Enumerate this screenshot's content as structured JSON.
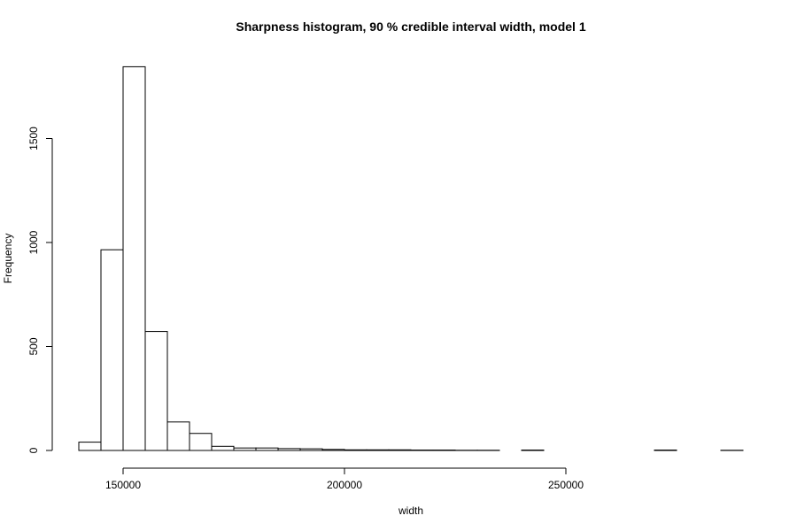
{
  "chart_data": {
    "type": "bar",
    "title": "Sharpness histogram, 90 % credible interval width, model 1",
    "xlabel": "width",
    "ylabel": "Frequency",
    "bin_width": 5000,
    "bins": [
      {
        "start": 140000,
        "end": 145000,
        "count": 40
      },
      {
        "start": 145000,
        "end": 150000,
        "count": 965
      },
      {
        "start": 150000,
        "end": 155000,
        "count": 1845
      },
      {
        "start": 155000,
        "end": 160000,
        "count": 572
      },
      {
        "start": 160000,
        "end": 165000,
        "count": 137
      },
      {
        "start": 165000,
        "end": 170000,
        "count": 82
      },
      {
        "start": 170000,
        "end": 175000,
        "count": 20
      },
      {
        "start": 175000,
        "end": 180000,
        "count": 12
      },
      {
        "start": 180000,
        "end": 185000,
        "count": 12
      },
      {
        "start": 185000,
        "end": 190000,
        "count": 9
      },
      {
        "start": 190000,
        "end": 195000,
        "count": 8
      },
      {
        "start": 195000,
        "end": 200000,
        "count": 5
      },
      {
        "start": 200000,
        "end": 205000,
        "count": 3
      },
      {
        "start": 205000,
        "end": 210000,
        "count": 3
      },
      {
        "start": 210000,
        "end": 215000,
        "count": 3
      },
      {
        "start": 215000,
        "end": 220000,
        "count": 2
      },
      {
        "start": 220000,
        "end": 225000,
        "count": 2
      },
      {
        "start": 225000,
        "end": 230000,
        "count": 1
      },
      {
        "start": 230000,
        "end": 235000,
        "count": 1
      },
      {
        "start": 235000,
        "end": 240000,
        "count": 0
      },
      {
        "start": 240000,
        "end": 245000,
        "count": 2
      },
      {
        "start": 245000,
        "end": 250000,
        "count": 0
      },
      {
        "start": 250000,
        "end": 255000,
        "count": 0
      },
      {
        "start": 255000,
        "end": 260000,
        "count": 0
      },
      {
        "start": 260000,
        "end": 265000,
        "count": 0
      },
      {
        "start": 265000,
        "end": 270000,
        "count": 0
      },
      {
        "start": 270000,
        "end": 275000,
        "count": 2
      },
      {
        "start": 275000,
        "end": 280000,
        "count": 0
      },
      {
        "start": 280000,
        "end": 285000,
        "count": 0
      },
      {
        "start": 285000,
        "end": 290000,
        "count": 1
      }
    ],
    "x_ticks": [
      {
        "value": 150000,
        "label": "150000"
      },
      {
        "value": 200000,
        "label": "200000"
      },
      {
        "value": 250000,
        "label": "250000"
      }
    ],
    "y_ticks": [
      {
        "value": 0,
        "label": "0"
      },
      {
        "value": 500,
        "label": "500"
      },
      {
        "value": 1000,
        "label": "1000"
      },
      {
        "value": 1500,
        "label": "1500"
      }
    ],
    "xlim": [
      140000,
      290000
    ],
    "ylim": [
      0,
      1845
    ],
    "grid": false
  }
}
